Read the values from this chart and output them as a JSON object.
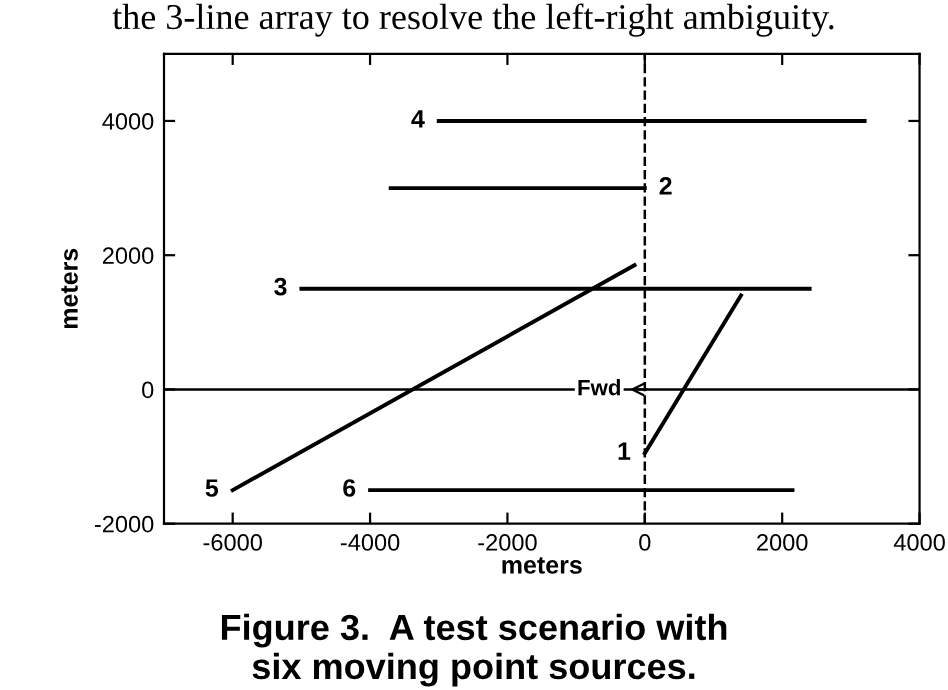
{
  "chart_data": {
    "type": "line",
    "title": "Figure 3.  A test scenario with\nsix moving point sources.",
    "xlabel": "meters",
    "ylabel": "meters",
    "xlim": [
      -7000,
      4000
    ],
    "ylim": [
      -2000,
      5000
    ],
    "xticks": [
      -6000,
      -4000,
      -2000,
      0,
      2000,
      4000
    ],
    "yticks": [
      -2000,
      0,
      2000,
      4000
    ],
    "grid": false,
    "legend": false,
    "marker": "none",
    "line_style": "solid",
    "series": [
      {
        "color": "#000000",
        "x": [
          0,
          1400
        ],
        "values": [
          -950,
          1400
        ]
      },
      {
        "color": "#000000",
        "x": [
          -3700,
          0
        ],
        "values": [
          3000,
          3000
        ]
      },
      {
        "color": "#000000",
        "x": [
          -5000,
          2400
        ],
        "values": [
          1500,
          1500
        ]
      },
      {
        "color": "#000000",
        "x": [
          -3000,
          3200
        ],
        "values": [
          4000,
          4000
        ]
      },
      {
        "color": "#000000",
        "x": [
          -6000,
          -150
        ],
        "values": [
          -1500,
          1850
        ]
      },
      {
        "color": "#000000",
        "x": [
          -4000,
          2150
        ],
        "values": [
          -1500,
          -1500
        ]
      }
    ],
    "ref_lines": [
      {
        "axis": "x",
        "value": 0,
        "line_style": "dashed",
        "color": "#000000"
      },
      {
        "axis": "y",
        "value": 0,
        "line_style": "solid",
        "color": "#000000"
      }
    ],
    "annotations": [
      "the 3-line array to resolve the left-right ambiguity.",
      {
        "text": "1",
        "x": 0,
        "y": -950
      },
      {
        "text": "2",
        "x": 0,
        "y": 3000
      },
      {
        "text": "3",
        "x": -5000,
        "y": 1500
      },
      {
        "text": "4",
        "x": -3000,
        "y": 4000
      },
      {
        "text": "5",
        "x": -6000,
        "y": -1500
      },
      {
        "text": "6",
        "x": -4000,
        "y": -1500
      },
      {
        "text": "Fwd",
        "x": -300,
        "y": 0
      }
    ]
  }
}
